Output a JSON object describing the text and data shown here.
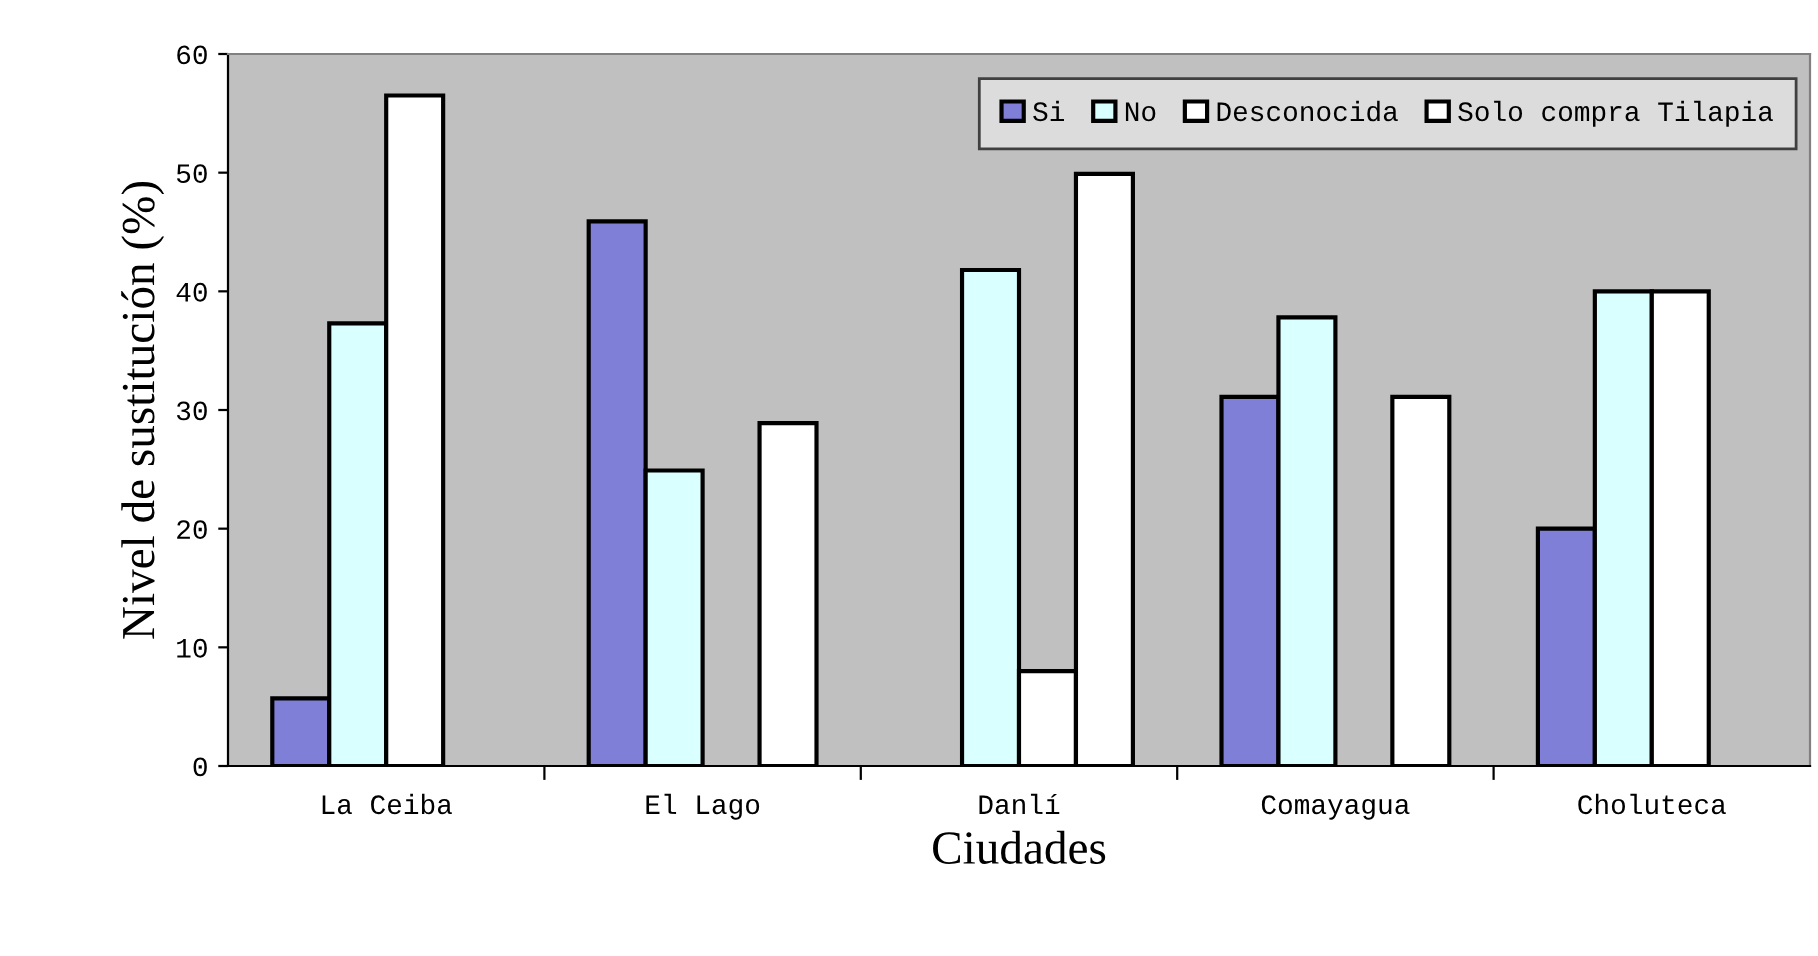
{
  "chart_data": {
    "type": "bar",
    "xlabel": "Ciudades",
    "ylabel": "Nivel de sustitución (%)",
    "categories": [
      "La Ceiba",
      "El Lago",
      "Danlí",
      "Comayagua",
      "Choluteca"
    ],
    "series": [
      {
        "name": "Si",
        "color": "#7f7fd8",
        "values": [
          5.7,
          45.9,
          null,
          31.1,
          20.0
        ]
      },
      {
        "name": "No",
        "color": "#d9ffff",
        "values": [
          37.3,
          24.9,
          41.8,
          37.8,
          40.0
        ]
      },
      {
        "name": "Desconocida",
        "color": "#ffffff",
        "values": [
          56.5,
          null,
          8.0,
          null,
          40.0
        ]
      },
      {
        "name": "Solo compra Tilapia",
        "color": "#ffffff",
        "values": [
          null,
          28.9,
          49.9,
          31.1,
          null
        ]
      }
    ],
    "ylim": [
      0,
      60
    ],
    "yticks": [
      0,
      10,
      20,
      30,
      40,
      50,
      60
    ],
    "grid": false,
    "legend": "top right"
  }
}
